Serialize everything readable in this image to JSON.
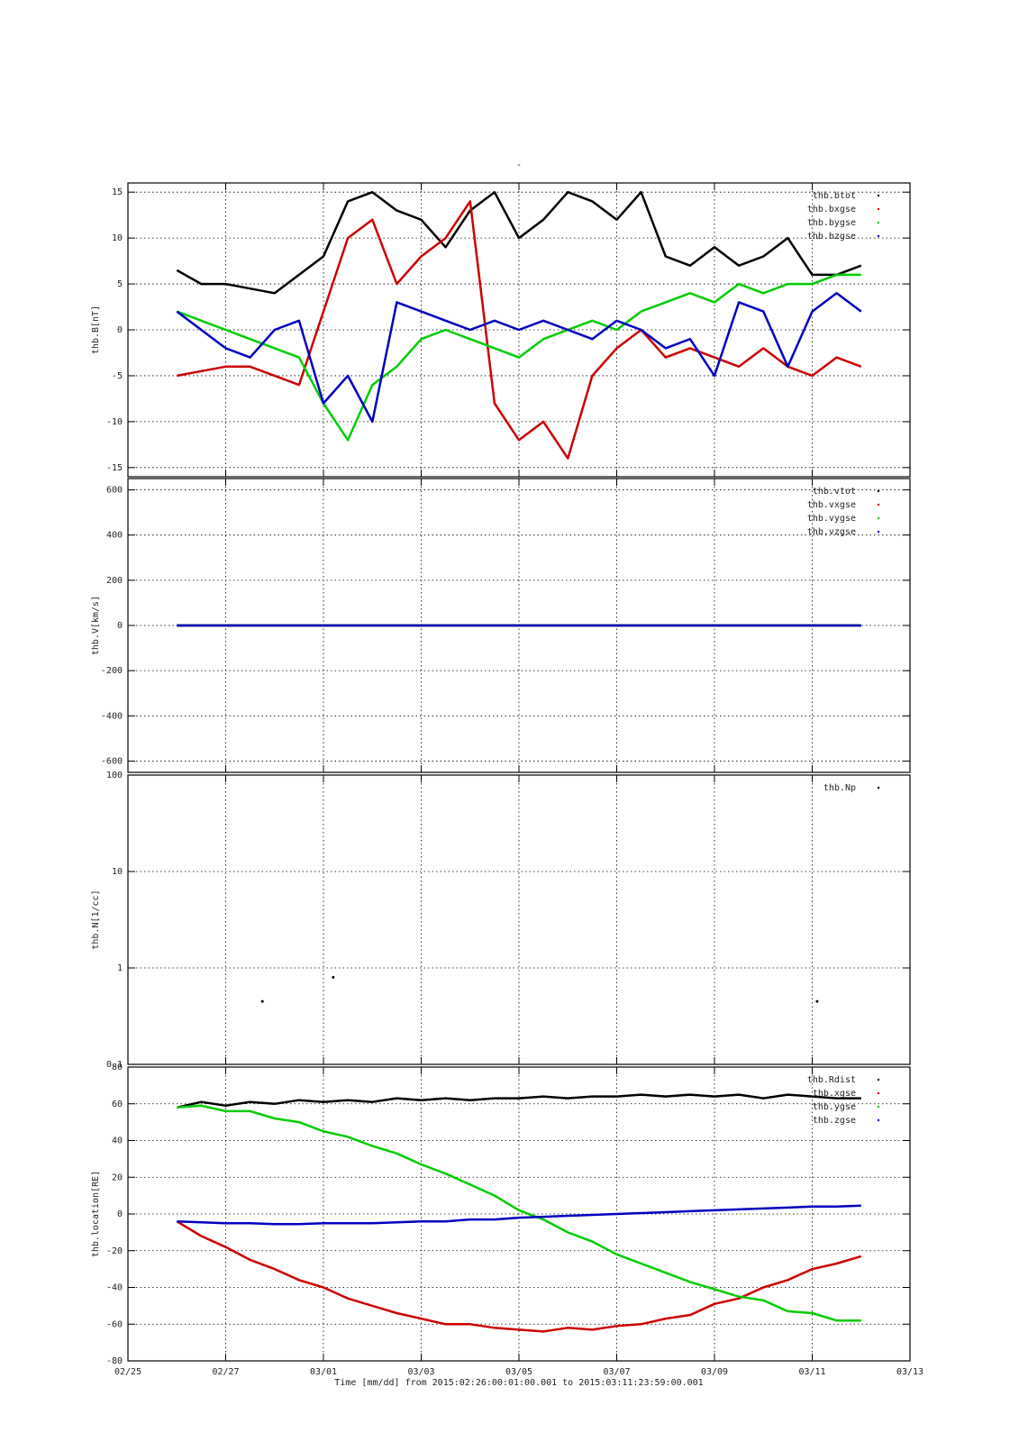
{
  "chart_data": [
    {
      "type": "line",
      "title": "-",
      "ylabel": "thb.B[nT]",
      "ylim": [
        -16,
        16
      ],
      "yticks": [
        -15,
        -10,
        -5,
        0,
        5,
        10,
        15
      ],
      "grid": true,
      "legend": "top-right",
      "x": [
        1,
        1.5,
        2,
        2.5,
        3,
        3.5,
        4,
        4.5,
        5,
        5.5,
        6,
        6.5,
        7,
        7.5,
        8,
        8.5,
        9,
        9.5,
        10,
        10.5,
        11,
        11.5,
        12,
        12.5,
        13,
        13.5,
        14,
        14.5,
        15
      ],
      "series": [
        {
          "name": "thb.btot",
          "color": "#000000",
          "values": [
            6.5,
            5,
            5,
            4.5,
            4,
            6,
            8,
            14,
            15,
            13,
            12,
            9,
            13,
            15,
            10,
            12,
            15,
            14,
            12,
            15,
            8,
            7,
            9,
            7,
            8,
            10,
            6,
            6,
            7
          ]
        },
        {
          "name": "thb.bxgse",
          "color": "#cc0000",
          "values": [
            -5,
            -4.5,
            -4,
            -4,
            -5,
            -6,
            2,
            10,
            12,
            5,
            8,
            10,
            14,
            -8,
            -12,
            -10,
            -14,
            -5,
            -2,
            0,
            -3,
            -2,
            -3,
            -4,
            -2,
            -4,
            -5,
            -3,
            -4
          ]
        },
        {
          "name": "thb.bygse",
          "color": "#00cc00",
          "values": [
            2,
            1,
            0,
            -1,
            -2,
            -3,
            -8,
            -12,
            -6,
            -4,
            -1,
            0,
            -1,
            -2,
            -3,
            -1,
            0,
            1,
            0,
            2,
            3,
            4,
            3,
            5,
            4,
            5,
            5,
            6,
            6
          ]
        },
        {
          "name": "thb.bzgse",
          "color": "#0000c0",
          "values": [
            2,
            0,
            -2,
            -3,
            0,
            1,
            -8,
            -5,
            -10,
            3,
            2,
            1,
            0,
            1,
            0,
            1,
            0,
            -1,
            1,
            0,
            -2,
            -1,
            -5,
            3,
            2,
            -4,
            2,
            4,
            2
          ]
        }
      ]
    },
    {
      "type": "line",
      "ylabel": "thb.V[km/s]",
      "ylim": [
        -650,
        650
      ],
      "yticks": [
        -600,
        -400,
        -200,
        0,
        200,
        400,
        600
      ],
      "grid": true,
      "legend": "top-right",
      "x": [
        1,
        15
      ],
      "series": [
        {
          "name": "thb.vtot",
          "color": "#000000",
          "values": [
            0,
            0
          ]
        },
        {
          "name": "thb.vxgse",
          "color": "#cc0000",
          "values": [
            0,
            0
          ]
        },
        {
          "name": "thb.vygse",
          "color": "#00cc00",
          "values": [
            0,
            0
          ]
        },
        {
          "name": "thb.vzgse",
          "color": "#0000c0",
          "values": [
            0,
            0
          ]
        }
      ]
    },
    {
      "type": "scatter",
      "ylabel": "thb.N[1/cc]",
      "log_y": true,
      "ylim": [
        0.1,
        100
      ],
      "yticks": [
        0.1,
        1,
        10,
        100
      ],
      "grid": true,
      "legend": "top-right",
      "x": [
        2.75,
        4.2,
        14.1
      ],
      "series": [
        {
          "name": "thb.Np",
          "color": "#000000",
          "values": [
            0.45,
            0.8,
            0.45
          ]
        }
      ]
    },
    {
      "type": "line",
      "ylabel": "thb.location[RE]",
      "ylim": [
        -80,
        80
      ],
      "yticks": [
        -80,
        -60,
        -40,
        -20,
        0,
        20,
        40,
        60,
        80
      ],
      "grid": true,
      "legend": "top-right",
      "xlabel": "Time [mm/dd]  from 2015:02:26:00:01:00.001  to  2015:03:11:23:59:00.001",
      "xlim": [
        0,
        16
      ],
      "xticks": [
        {
          "value": 0,
          "label": "02/25"
        },
        {
          "value": 2,
          "label": "02/27"
        },
        {
          "value": 4,
          "label": "03/01"
        },
        {
          "value": 6,
          "label": "03/03"
        },
        {
          "value": 8,
          "label": "03/05"
        },
        {
          "value": 10,
          "label": "03/07"
        },
        {
          "value": 12,
          "label": "03/09"
        },
        {
          "value": 14,
          "label": "03/11"
        },
        {
          "value": 16,
          "label": "03/13"
        }
      ],
      "x": [
        1,
        1.5,
        2,
        2.5,
        3,
        3.5,
        4,
        4.5,
        5,
        5.5,
        6,
        6.5,
        7,
        7.5,
        8,
        8.5,
        9,
        9.5,
        10,
        10.5,
        11,
        11.5,
        12,
        12.5,
        13,
        13.5,
        14,
        14.5,
        15
      ],
      "series": [
        {
          "name": "thb.Rdist",
          "color": "#000000",
          "values": [
            58,
            61,
            59,
            61,
            60,
            62,
            61,
            62,
            61,
            63,
            62,
            63,
            62,
            63,
            63,
            64,
            63,
            64,
            64,
            65,
            64,
            65,
            64,
            65,
            63,
            65,
            64,
            63,
            63
          ]
        },
        {
          "name": "thb.xgse",
          "color": "#cc0000",
          "values": [
            -4,
            -12,
            -18,
            -25,
            -30,
            -36,
            -40,
            -46,
            -50,
            -54,
            -57,
            -60,
            -60,
            -62,
            -63,
            -64,
            -62,
            -63,
            -61,
            -60,
            -57,
            -55,
            -49,
            -46,
            -40,
            -36,
            -30,
            -27,
            -23
          ]
        },
        {
          "name": "thb.ygse",
          "color": "#00cc00",
          "values": [
            58,
            59,
            56,
            56,
            52,
            50,
            45,
            42,
            37,
            33,
            27,
            22,
            16,
            10,
            2,
            -3,
            -10,
            -15,
            -22,
            -27,
            -32,
            -37,
            -41,
            -45,
            -47,
            -53,
            -54,
            -58,
            -58
          ]
        },
        {
          "name": "thb.zgse",
          "color": "#0000c0",
          "values": [
            -4,
            -4.5,
            -5,
            -5,
            -5.5,
            -5.5,
            -5,
            -5,
            -5,
            -4.5,
            -4,
            -4,
            -3,
            -3,
            -2,
            -1.5,
            -1,
            -0.5,
            0,
            0.5,
            1,
            1.5,
            2,
            2.5,
            3,
            3.5,
            4,
            4,
            4.5
          ]
        }
      ]
    }
  ]
}
